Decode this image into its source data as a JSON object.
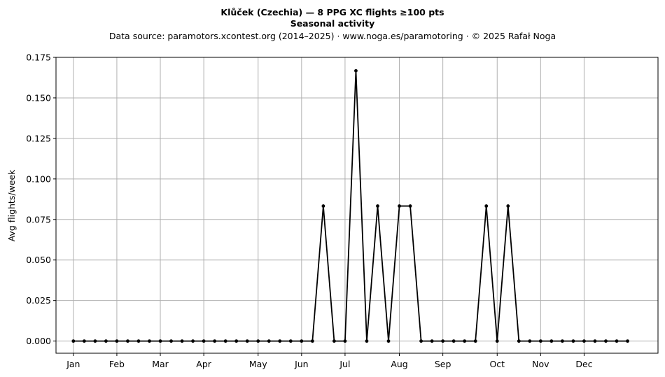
{
  "chart_data": {
    "type": "line",
    "title": "Klůček (Czechia)  —  8 PPG XC flights ≥100 pts",
    "title_line2": "Seasonal activity",
    "subtitle": "Data source: paramotors.xcontest.org (2014–2025)  ·  www.noga.es/paramotoring  ·  © 2025 Rafał Noga",
    "xlabel": "",
    "ylabel": "Avg flights/week",
    "ylim": [
      -0.0075,
      0.175
    ],
    "yticks": [
      "0.000",
      "0.025",
      "0.050",
      "0.075",
      "0.100",
      "0.125",
      "0.150",
      "0.175"
    ],
    "xlim": [
      -0.6,
      54.8
    ],
    "month_ticks": [
      {
        "label": "Jan",
        "week": 1
      },
      {
        "label": "Feb",
        "week": 5
      },
      {
        "label": "Mar",
        "week": 9
      },
      {
        "label": "Apr",
        "week": 13
      },
      {
        "label": "May",
        "week": 18
      },
      {
        "label": "Jun",
        "week": 22
      },
      {
        "label": "Jul",
        "week": 26
      },
      {
        "label": "Aug",
        "week": 31
      },
      {
        "label": "Sep",
        "week": 35
      },
      {
        "label": "Oct",
        "week": 40
      },
      {
        "label": "Nov",
        "week": 44
      },
      {
        "label": "Dec",
        "week": 48
      }
    ],
    "grid": true,
    "series": [
      {
        "color": "#000000",
        "x": [
          1,
          2,
          3,
          4,
          5,
          6,
          7,
          8,
          9,
          10,
          11,
          12,
          13,
          14,
          15,
          16,
          17,
          18,
          19,
          20,
          21,
          22,
          23,
          24,
          25,
          26,
          27,
          28,
          29,
          30,
          31,
          32,
          33,
          34,
          35,
          36,
          37,
          38,
          39,
          40,
          41,
          42,
          43,
          44,
          45,
          46,
          47,
          48,
          49,
          50,
          51,
          52
        ],
        "values": [
          0,
          0,
          0,
          0,
          0,
          0,
          0,
          0,
          0,
          0,
          0,
          0,
          0,
          0,
          0,
          0,
          0,
          0,
          0,
          0,
          0,
          0,
          0,
          0.0833,
          0,
          0,
          0.1667,
          0,
          0.0833,
          0,
          0.0833,
          0.0833,
          0,
          0,
          0,
          0,
          0,
          0,
          0.0833,
          0,
          0.0833,
          0,
          0,
          0,
          0,
          0,
          0,
          0,
          0,
          0,
          0,
          0
        ]
      }
    ]
  }
}
